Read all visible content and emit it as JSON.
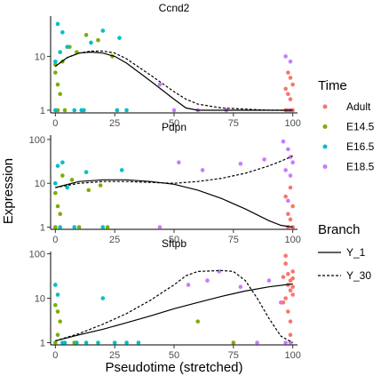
{
  "chart_data": {
    "type": "scatter",
    "xlabel": "Pseudotime (stretched)",
    "ylabel": "Expression",
    "x_ticks": [
      0,
      25,
      50,
      75,
      100
    ],
    "xlim": [
      -2,
      102
    ],
    "y_scale": "log10",
    "legend_time": {
      "title": "Time",
      "entries": [
        {
          "name": "Adult",
          "color": "#F8766D"
        },
        {
          "name": "E14.5",
          "color": "#7CAE00"
        },
        {
          "name": "E16.5",
          "color": "#00BFC4"
        },
        {
          "name": "E18.5",
          "color": "#C77CFF"
        }
      ]
    },
    "legend_branch": {
      "title": "Branch",
      "entries": [
        {
          "name": "Y_1",
          "linetype": "solid"
        },
        {
          "name": "Y_30",
          "linetype": "dashed"
        }
      ]
    },
    "panels": [
      {
        "title": "Ccnd2",
        "ylim_log10": [
          -0.05,
          1.75
        ],
        "y_ticks": [
          1,
          10
        ],
        "y_tick_labels": [
          "1",
          "10"
        ],
        "lines": [
          {
            "branch": "Y_1",
            "x": [
              0,
              5,
              10,
              15,
              20,
              25,
              30,
              40,
              50,
              55,
              60,
              70,
              80,
              90,
              100
            ],
            "y": [
              6.5,
              9.5,
              11.5,
              12,
              11.5,
              10,
              7.5,
              3.5,
              1.6,
              1.1,
              1.0,
              1.0,
              1.0,
              1.0,
              1.0
            ]
          },
          {
            "branch": "Y_30",
            "x": [
              0,
              5,
              10,
              15,
              20,
              25,
              30,
              40,
              50,
              55,
              60,
              70,
              80,
              90,
              100
            ],
            "y": [
              6.5,
              9.5,
              11.5,
              12.5,
              12.5,
              11.5,
              9,
              4.5,
              2.2,
              1.6,
              1.3,
              1.1,
              1.05,
              1.0,
              1.0
            ]
          }
        ],
        "points": [
          {
            "time": "E14.5",
            "x": 0,
            "y": 5
          },
          {
            "time": "E14.5",
            "x": 1,
            "y": 3
          },
          {
            "time": "E14.5",
            "x": 2,
            "y": 2
          },
          {
            "time": "E14.5",
            "x": 1,
            "y": 1
          },
          {
            "time": "E14.5",
            "x": 3,
            "y": 8
          },
          {
            "time": "E14.5",
            "x": 6,
            "y": 15
          },
          {
            "time": "E14.5",
            "x": 9,
            "y": 12
          },
          {
            "time": "E14.5",
            "x": 13,
            "y": 25
          },
          {
            "time": "E14.5",
            "x": 18,
            "y": 20
          },
          {
            "time": "E14.5",
            "x": 24,
            "y": 10
          },
          {
            "time": "E14.5",
            "x": 4,
            "y": 1
          },
          {
            "time": "E14.5",
            "x": 0,
            "y": 7
          },
          {
            "time": "E16.5",
            "x": 0,
            "y": 8
          },
          {
            "time": "E16.5",
            "x": 1,
            "y": 40
          },
          {
            "time": "E16.5",
            "x": 2,
            "y": 12
          },
          {
            "time": "E16.5",
            "x": 3,
            "y": 28
          },
          {
            "time": "E16.5",
            "x": 5,
            "y": 15
          },
          {
            "time": "E16.5",
            "x": 8,
            "y": 1
          },
          {
            "time": "E16.5",
            "x": 11,
            "y": 1
          },
          {
            "time": "E16.5",
            "x": 15,
            "y": 18
          },
          {
            "time": "E16.5",
            "x": 20,
            "y": 30
          },
          {
            "time": "E16.5",
            "x": 26,
            "y": 1
          },
          {
            "time": "E16.5",
            "x": 27,
            "y": 22
          },
          {
            "time": "E16.5",
            "x": 30,
            "y": 1
          },
          {
            "time": "E16.5",
            "x": 0,
            "y": 1
          },
          {
            "time": "E16.5",
            "x": 12,
            "y": 1
          },
          {
            "time": "E18.5",
            "x": 44,
            "y": 3
          },
          {
            "time": "E18.5",
            "x": 50,
            "y": 1
          },
          {
            "time": "E18.5",
            "x": 60,
            "y": 1
          },
          {
            "time": "E18.5",
            "x": 72,
            "y": 1
          },
          {
            "time": "E18.5",
            "x": 97,
            "y": 10
          },
          {
            "time": "E18.5",
            "x": 99,
            "y": 8
          },
          {
            "time": "E18.5",
            "x": 98,
            "y": 1
          },
          {
            "time": "Adult",
            "x": 98,
            "y": 5
          },
          {
            "time": "Adult",
            "x": 99,
            "y": 4
          },
          {
            "time": "Adult",
            "x": 100,
            "y": 3
          },
          {
            "time": "Adult",
            "x": 97,
            "y": 2.5
          },
          {
            "time": "Adult",
            "x": 98,
            "y": 2
          },
          {
            "time": "Adult",
            "x": 99,
            "y": 1.6
          },
          {
            "time": "Adult",
            "x": 100,
            "y": 1
          },
          {
            "time": "Adult",
            "x": 97,
            "y": 1
          },
          {
            "time": "Adult",
            "x": 99,
            "y": 1
          }
        ]
      },
      {
        "title": "Pdpn",
        "ylim_log10": [
          -0.05,
          2.1
        ],
        "y_ticks": [
          1,
          10,
          100
        ],
        "y_tick_labels": [
          "1",
          "10",
          "100"
        ],
        "lines": [
          {
            "branch": "Y_1",
            "x": [
              0,
              10,
              20,
              30,
              40,
              50,
              60,
              70,
              80,
              90,
              95,
              100
            ],
            "y": [
              8,
              11,
              12,
              12,
              11,
              9.5,
              7,
              4.5,
              2.6,
              1.4,
              1.1,
              1.0
            ]
          },
          {
            "branch": "Y_30",
            "x": [
              0,
              10,
              20,
              30,
              40,
              50,
              60,
              70,
              80,
              90,
              95,
              100
            ],
            "y": [
              8,
              10,
              11,
              11,
              10.5,
              10,
              11,
              13,
              17,
              25,
              32,
              42
            ]
          }
        ],
        "points": [
          {
            "time": "E14.5",
            "x": 0,
            "y": 6
          },
          {
            "time": "E14.5",
            "x": 1,
            "y": 3
          },
          {
            "time": "E14.5",
            "x": 2,
            "y": 2
          },
          {
            "time": "E14.5",
            "x": 3,
            "y": 15
          },
          {
            "time": "E14.5",
            "x": 7,
            "y": 12
          },
          {
            "time": "E14.5",
            "x": 10,
            "y": 1
          },
          {
            "time": "E14.5",
            "x": 14,
            "y": 7
          },
          {
            "time": "E14.5",
            "x": 19,
            "y": 9
          },
          {
            "time": "E14.5",
            "x": 22,
            "y": 1
          },
          {
            "time": "E14.5",
            "x": 0,
            "y": 1
          },
          {
            "time": "E16.5",
            "x": 0,
            "y": 10
          },
          {
            "time": "E16.5",
            "x": 1,
            "y": 25
          },
          {
            "time": "E16.5",
            "x": 3,
            "y": 30
          },
          {
            "time": "E16.5",
            "x": 5,
            "y": 8
          },
          {
            "time": "E16.5",
            "x": 8,
            "y": 1
          },
          {
            "time": "E16.5",
            "x": 13,
            "y": 18
          },
          {
            "time": "E16.5",
            "x": 20,
            "y": 1
          },
          {
            "time": "E16.5",
            "x": 28,
            "y": 20
          },
          {
            "time": "E16.5",
            "x": 2,
            "y": 1
          },
          {
            "time": "E18.5",
            "x": 44,
            "y": 1
          },
          {
            "time": "E18.5",
            "x": 52,
            "y": 30
          },
          {
            "time": "E18.5",
            "x": 62,
            "y": 20
          },
          {
            "time": "E18.5",
            "x": 78,
            "y": 28
          },
          {
            "time": "E18.5",
            "x": 88,
            "y": 35
          },
          {
            "time": "E18.5",
            "x": 96,
            "y": 90
          },
          {
            "time": "E18.5",
            "x": 98,
            "y": 60
          },
          {
            "time": "E18.5",
            "x": 99,
            "y": 40
          },
          {
            "time": "E18.5",
            "x": 100,
            "y": 30
          },
          {
            "time": "E18.5",
            "x": 97,
            "y": 20
          },
          {
            "time": "E18.5",
            "x": 99,
            "y": 15
          },
          {
            "time": "E18.5",
            "x": 98,
            "y": 4
          },
          {
            "time": "Adult",
            "x": 97,
            "y": 5
          },
          {
            "time": "Adult",
            "x": 98,
            "y": 2
          },
          {
            "time": "Adult",
            "x": 99,
            "y": 1.5
          },
          {
            "time": "Adult",
            "x": 100,
            "y": 1
          },
          {
            "time": "Adult",
            "x": 98,
            "y": 1
          },
          {
            "time": "Adult",
            "x": 99,
            "y": 8
          },
          {
            "time": "Adult",
            "x": 100,
            "y": 3
          }
        ]
      },
      {
        "title": "Sftpb",
        "ylim_log10": [
          -0.05,
          2.05
        ],
        "y_ticks": [
          1,
          10,
          100
        ],
        "y_tick_labels": [
          "1",
          "10",
          "100"
        ],
        "lines": [
          {
            "branch": "Y_1",
            "x": [
              0,
              10,
              20,
              30,
              40,
              50,
              60,
              70,
              80,
              90,
              100
            ],
            "y": [
              1.1,
              1.5,
              2.0,
              2.8,
              4.0,
              5.8,
              8,
              11,
              14.5,
              18,
              21
            ]
          },
          {
            "branch": "Y_30",
            "x": [
              0,
              10,
              20,
              30,
              40,
              50,
              55,
              60,
              70,
              75,
              80,
              85,
              90,
              95,
              100
            ],
            "y": [
              1.1,
              1.6,
              2.6,
              4.5,
              9,
              20,
              32,
              40,
              42,
              40,
              25,
              10,
              3.5,
              1.4,
              1.0
            ]
          }
        ],
        "points": [
          {
            "time": "E14.5",
            "x": 0,
            "y": 7
          },
          {
            "time": "E14.5",
            "x": 1,
            "y": 5
          },
          {
            "time": "E14.5",
            "x": 2,
            "y": 3
          },
          {
            "time": "E14.5",
            "x": 1,
            "y": 1.5
          },
          {
            "time": "E14.5",
            "x": 0,
            "y": 1
          },
          {
            "time": "E14.5",
            "x": 8,
            "y": 1
          },
          {
            "time": "E14.5",
            "x": 60,
            "y": 3
          },
          {
            "time": "E14.5",
            "x": 75,
            "y": 1
          },
          {
            "time": "E16.5",
            "x": 0,
            "y": 20
          },
          {
            "time": "E16.5",
            "x": 1,
            "y": 12
          },
          {
            "time": "E16.5",
            "x": 3,
            "y": 1
          },
          {
            "time": "E16.5",
            "x": 9,
            "y": 1
          },
          {
            "time": "E16.5",
            "x": 13,
            "y": 1
          },
          {
            "time": "E16.5",
            "x": 18,
            "y": 1
          },
          {
            "time": "E16.5",
            "x": 20,
            "y": 10
          },
          {
            "time": "E16.5",
            "x": 25,
            "y": 1
          },
          {
            "time": "E16.5",
            "x": 30,
            "y": 1
          },
          {
            "time": "E16.5",
            "x": 35,
            "y": 1
          },
          {
            "time": "E16.5",
            "x": 4,
            "y": 1
          },
          {
            "time": "E18.5",
            "x": 56,
            "y": 20
          },
          {
            "time": "E18.5",
            "x": 64,
            "y": 25
          },
          {
            "time": "E18.5",
            "x": 69,
            "y": 40
          },
          {
            "time": "E18.5",
            "x": 78,
            "y": 18
          },
          {
            "time": "E18.5",
            "x": 85,
            "y": 1
          },
          {
            "time": "E18.5",
            "x": 90,
            "y": 25
          },
          {
            "time": "E18.5",
            "x": 95,
            "y": 8
          },
          {
            "time": "E18.5",
            "x": 97,
            "y": 1
          },
          {
            "time": "E18.5",
            "x": 99,
            "y": 1
          },
          {
            "time": "Adult",
            "x": 96,
            "y": 30
          },
          {
            "time": "Adult",
            "x": 97,
            "y": 60
          },
          {
            "time": "Adult",
            "x": 98,
            "y": 20
          },
          {
            "time": "Adult",
            "x": 99,
            "y": 15
          },
          {
            "time": "Adult",
            "x": 100,
            "y": 12
          },
          {
            "time": "Adult",
            "x": 97,
            "y": 10
          },
          {
            "time": "Adult",
            "x": 98,
            "y": 35
          },
          {
            "time": "Adult",
            "x": 99,
            "y": 25
          },
          {
            "time": "Adult",
            "x": 100,
            "y": 40
          },
          {
            "time": "Adult",
            "x": 96,
            "y": 8
          },
          {
            "time": "Adult",
            "x": 98,
            "y": 5
          },
          {
            "time": "Adult",
            "x": 99,
            "y": 3
          },
          {
            "time": "Adult",
            "x": 100,
            "y": 18
          },
          {
            "time": "Adult",
            "x": 97,
            "y": 90
          },
          {
            "time": "Adult",
            "x": 99,
            "y": 1.5
          },
          {
            "time": "Adult",
            "x": 100,
            "y": 28
          }
        ]
      }
    ]
  }
}
